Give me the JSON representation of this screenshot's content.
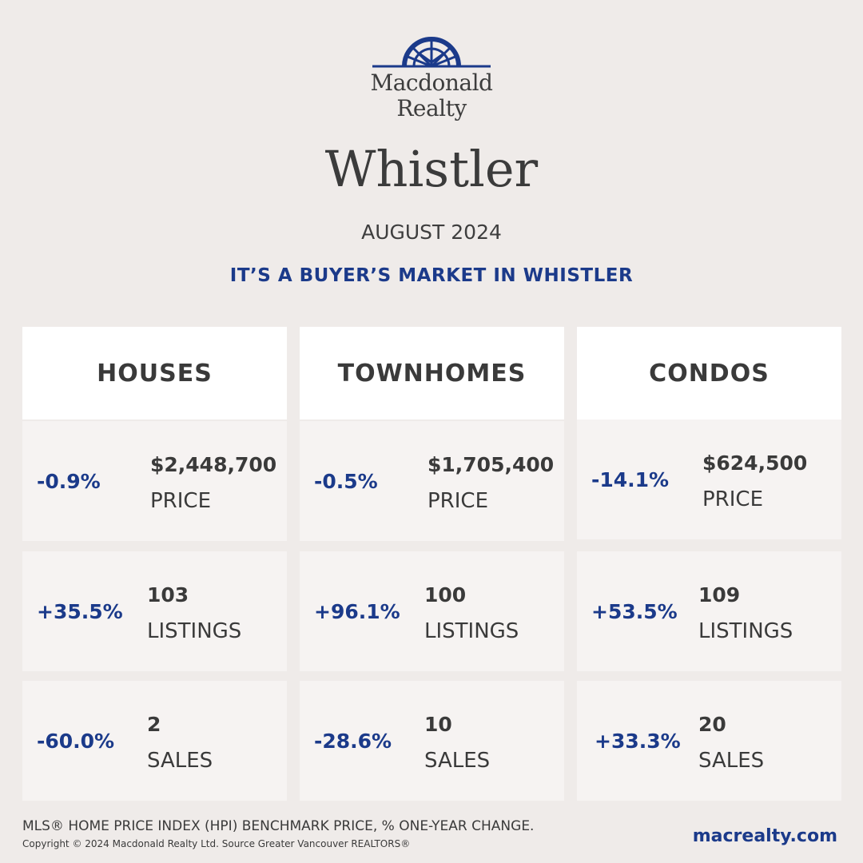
{
  "brand": {
    "line1": "Macdonald",
    "line2": "Realty",
    "color": "#1b3a8a"
  },
  "city": "Whistler",
  "date": "AUGUST 2024",
  "headline": "IT’S A BUYER’S MARKET IN WHISTLER",
  "columns": [
    {
      "title": "HOUSES",
      "price": {
        "change": "-0.9%",
        "value": "$2,448,700",
        "label": "PRICE"
      },
      "listings": {
        "change": "+35.5%",
        "value": "103",
        "label": "LISTINGS"
      },
      "sales": {
        "change": "-60.0%",
        "value": "2",
        "label": "SALES"
      }
    },
    {
      "title": "TOWNHOMES",
      "price": {
        "change": "-0.5%",
        "value": "$1,705,400",
        "label": "PRICE"
      },
      "listings": {
        "change": "+96.1%",
        "value": "100",
        "label": "LISTINGS"
      },
      "sales": {
        "change": "-28.6%",
        "value": "10",
        "label": "SALES"
      }
    },
    {
      "title": "CONDOS",
      "price": {
        "change": "-14.1%",
        "value": "$624,500",
        "label": "PRICE"
      },
      "listings": {
        "change": "+53.5%",
        "value": "109",
        "label": "LISTINGS"
      },
      "sales": {
        "change": "+33.3%",
        "value": "20",
        "label": "SALES"
      }
    }
  ],
  "footer": {
    "note": "MLS® HOME PRICE INDEX (HPI) BENCHMARK PRICE, % ONE-YEAR CHANGE.",
    "copyright": "Copyright © 2024 Macdonald Realty Ltd. Source Greater Vancouver REALTORS®",
    "website": "macrealty.com"
  }
}
